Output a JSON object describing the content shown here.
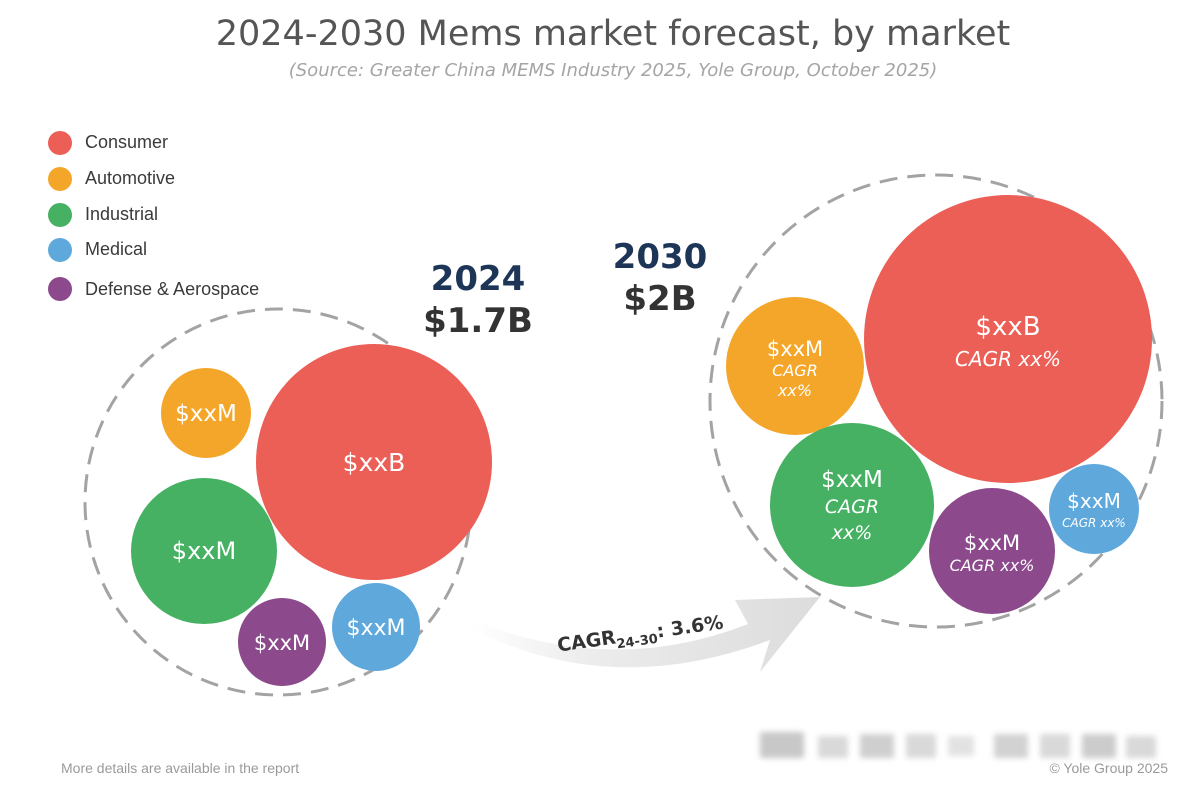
{
  "header": {
    "title": "2024-2030 Mems market forecast, by market",
    "subtitle": "(Source: Greater China MEMS Industry 2025, Yole Group, October 2025)"
  },
  "legend": [
    {
      "label": "Consumer",
      "color": "#ec5f57"
    },
    {
      "label": "Automotive",
      "color": "#f4a62a"
    },
    {
      "label": "Industrial",
      "color": "#46b163"
    },
    {
      "label": "Medical",
      "color": "#5ea8dc"
    },
    {
      "label": "Defense & Aerospace",
      "color": "#8c4a8c"
    }
  ],
  "groups": {
    "y2024": {
      "year": "2024",
      "total": "$1.7B",
      "bubbles": {
        "consumer": {
          "lines": [
            "$xxB"
          ]
        },
        "automotive": {
          "lines": [
            "$xxM"
          ]
        },
        "industrial": {
          "lines": [
            "$xxM"
          ]
        },
        "defense": {
          "lines": [
            "$xxM"
          ]
        },
        "medical": {
          "lines": [
            "$xxM"
          ]
        }
      }
    },
    "y2030": {
      "year": "2030",
      "total": "$2B",
      "bubbles": {
        "consumer": {
          "lines": [
            "$xxB",
            "CAGR xx%"
          ]
        },
        "automotive": {
          "lines": [
            "$xxM",
            "CAGR",
            "xx%"
          ]
        },
        "industrial": {
          "lines": [
            "$xxM",
            "CAGR",
            "xx%"
          ]
        },
        "defense": {
          "lines": [
            "$xxM",
            "CAGR xx%"
          ]
        },
        "medical": {
          "lines": [
            "$xxM",
            "CAGR xx%"
          ]
        }
      }
    }
  },
  "cagr": {
    "prefix": "CAGR",
    "subscript": "24-30",
    "value": ": 3.6%"
  },
  "footer": {
    "left": "More details are available in the report",
    "right": "© Yole Group 2025"
  }
}
